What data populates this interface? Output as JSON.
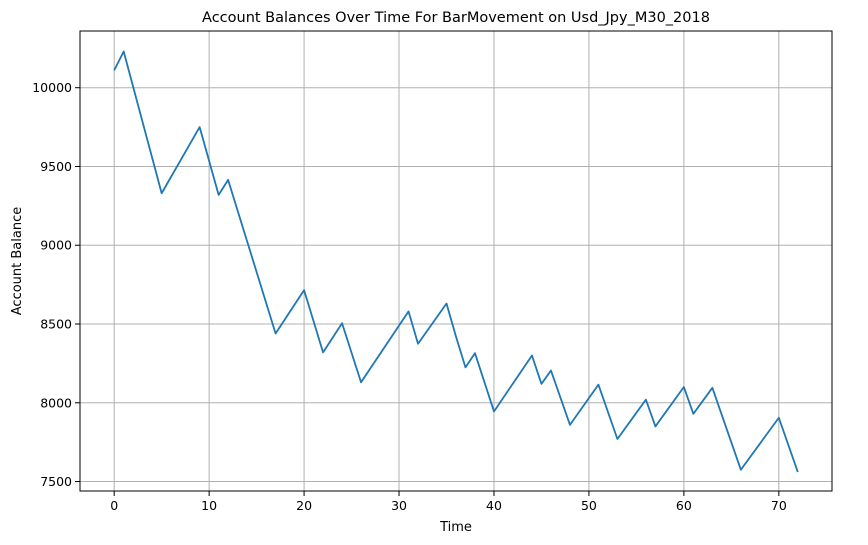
{
  "chart_data": {
    "type": "line",
    "title": "Account Balances Over Time For BarMovement on Usd_Jpy_M30_2018",
    "xlabel": "Time",
    "ylabel": "Account Balance",
    "xlim": [
      -3.6,
      75.6
    ],
    "ylim": [
      7440,
      10360
    ],
    "xticks": [
      0,
      10,
      20,
      30,
      40,
      50,
      60,
      70
    ],
    "xtick_labels": [
      "0",
      "10",
      "20",
      "30",
      "40",
      "50",
      "60",
      "70"
    ],
    "yticks": [
      7500,
      8000,
      8500,
      9000,
      9500,
      10000
    ],
    "ytick_labels": [
      "7500",
      "8000",
      "8500",
      "9000",
      "9500",
      "10000"
    ],
    "grid": true,
    "line_color": "#1f77b4",
    "series": [
      {
        "x": [
          0,
          1,
          5,
          9,
          11,
          12,
          17,
          20,
          22,
          24,
          26,
          31,
          32,
          35,
          36,
          37,
          38,
          40,
          44,
          45,
          46,
          48,
          51,
          53,
          56,
          57,
          60,
          61,
          63,
          66,
          70,
          72
        ],
        "values": [
          10110,
          10230,
          9330,
          9750,
          9320,
          9415,
          8440,
          8715,
          8320,
          8505,
          8130,
          8580,
          8375,
          8630,
          8420,
          8225,
          8315,
          7945,
          8300,
          8120,
          8205,
          7860,
          8115,
          7770,
          8020,
          7850,
          8100,
          7930,
          8095,
          7575,
          7905,
          7560
        ]
      }
    ]
  }
}
